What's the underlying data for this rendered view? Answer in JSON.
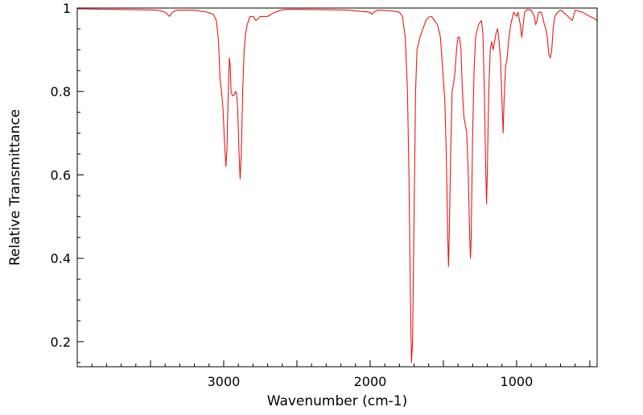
{
  "chart_data": {
    "type": "line",
    "title": "",
    "xlabel": "Wavenumber (cm-1)",
    "ylabel": "Relative Transmittance",
    "xlim": [
      4000,
      450
    ],
    "ylim": [
      0.14,
      1.0
    ],
    "x_reversed": true,
    "grid": false,
    "legend": "none",
    "x_ticks": [
      {
        "value": 3000,
        "label": "3000"
      },
      {
        "value": 2000,
        "label": "2000"
      },
      {
        "value": 1000,
        "label": "1000"
      }
    ],
    "y_ticks": [
      {
        "value": 0.2,
        "label": "0.2"
      },
      {
        "value": 0.4,
        "label": "0.4"
      },
      {
        "value": 0.6,
        "label": "0.6"
      },
      {
        "value": 0.8,
        "label": "0.8"
      },
      {
        "value": 1.0,
        "label": "1"
      }
    ],
    "series": [
      {
        "color": "#e8191a",
        "points": [
          [
            4000,
            0.998
          ],
          [
            3800,
            0.997
          ],
          [
            3600,
            0.996
          ],
          [
            3450,
            0.995
          ],
          [
            3400,
            0.99
          ],
          [
            3370,
            0.98
          ],
          [
            3350,
            0.99
          ],
          [
            3320,
            0.995
          ],
          [
            3200,
            0.995
          ],
          [
            3110,
            0.99
          ],
          [
            3070,
            0.985
          ],
          [
            3050,
            0.97
          ],
          [
            3035,
            0.92
          ],
          [
            3025,
            0.83
          ],
          [
            3015,
            0.8
          ],
          [
            3005,
            0.76
          ],
          [
            2995,
            0.68
          ],
          [
            2985,
            0.62
          ],
          [
            2978,
            0.66
          ],
          [
            2970,
            0.78
          ],
          [
            2962,
            0.88
          ],
          [
            2955,
            0.86
          ],
          [
            2950,
            0.8
          ],
          [
            2940,
            0.79
          ],
          [
            2930,
            0.79
          ],
          [
            2920,
            0.8
          ],
          [
            2912,
            0.795
          ],
          [
            2905,
            0.76
          ],
          [
            2895,
            0.65
          ],
          [
            2888,
            0.59
          ],
          [
            2880,
            0.65
          ],
          [
            2870,
            0.8
          ],
          [
            2860,
            0.9
          ],
          [
            2850,
            0.94
          ],
          [
            2840,
            0.96
          ],
          [
            2820,
            0.98
          ],
          [
            2800,
            0.98
          ],
          [
            2780,
            0.97
          ],
          [
            2750,
            0.98
          ],
          [
            2700,
            0.98
          ],
          [
            2650,
            0.99
          ],
          [
            2600,
            0.996
          ],
          [
            2500,
            0.997
          ],
          [
            2300,
            0.996
          ],
          [
            2150,
            0.995
          ],
          [
            2000,
            0.99
          ],
          [
            1990,
            0.985
          ],
          [
            1975,
            0.99
          ],
          [
            1950,
            0.995
          ],
          [
            1850,
            0.993
          ],
          [
            1800,
            0.99
          ],
          [
            1780,
            0.98
          ],
          [
            1760,
            0.93
          ],
          [
            1745,
            0.8
          ],
          [
            1735,
            0.6
          ],
          [
            1725,
            0.3
          ],
          [
            1718,
            0.15
          ],
          [
            1710,
            0.2
          ],
          [
            1700,
            0.5
          ],
          [
            1690,
            0.8
          ],
          [
            1680,
            0.9
          ],
          [
            1660,
            0.93
          ],
          [
            1640,
            0.95
          ],
          [
            1620,
            0.97
          ],
          [
            1600,
            0.978
          ],
          [
            1580,
            0.98
          ],
          [
            1560,
            0.97
          ],
          [
            1540,
            0.96
          ],
          [
            1520,
            0.93
          ],
          [
            1510,
            0.88
          ],
          [
            1500,
            0.83
          ],
          [
            1490,
            0.78
          ],
          [
            1480,
            0.65
          ],
          [
            1470,
            0.45
          ],
          [
            1465,
            0.38
          ],
          [
            1460,
            0.45
          ],
          [
            1450,
            0.65
          ],
          [
            1440,
            0.8
          ],
          [
            1430,
            0.82
          ],
          [
            1420,
            0.85
          ],
          [
            1410,
            0.9
          ],
          [
            1400,
            0.93
          ],
          [
            1390,
            0.93
          ],
          [
            1380,
            0.9
          ],
          [
            1370,
            0.8
          ],
          [
            1360,
            0.74
          ],
          [
            1350,
            0.72
          ],
          [
            1340,
            0.7
          ],
          [
            1330,
            0.6
          ],
          [
            1320,
            0.45
          ],
          [
            1315,
            0.4
          ],
          [
            1310,
            0.45
          ],
          [
            1300,
            0.7
          ],
          [
            1290,
            0.85
          ],
          [
            1280,
            0.93
          ],
          [
            1260,
            0.96
          ],
          [
            1240,
            0.97
          ],
          [
            1230,
            0.94
          ],
          [
            1220,
            0.8
          ],
          [
            1210,
            0.6
          ],
          [
            1205,
            0.53
          ],
          [
            1200,
            0.6
          ],
          [
            1190,
            0.8
          ],
          [
            1180,
            0.9
          ],
          [
            1170,
            0.92
          ],
          [
            1160,
            0.9
          ],
          [
            1150,
            0.92
          ],
          [
            1140,
            0.94
          ],
          [
            1130,
            0.95
          ],
          [
            1120,
            0.92
          ],
          [
            1110,
            0.88
          ],
          [
            1100,
            0.78
          ],
          [
            1092,
            0.7
          ],
          [
            1085,
            0.78
          ],
          [
            1075,
            0.86
          ],
          [
            1065,
            0.88
          ],
          [
            1055,
            0.92
          ],
          [
            1040,
            0.96
          ],
          [
            1020,
            0.99
          ],
          [
            1000,
            0.98
          ],
          [
            990,
            0.99
          ],
          [
            975,
            0.96
          ],
          [
            965,
            0.93
          ],
          [
            955,
            0.96
          ],
          [
            945,
            0.99
          ],
          [
            930,
            0.996
          ],
          [
            900,
            0.995
          ],
          [
            880,
            0.98
          ],
          [
            870,
            0.96
          ],
          [
            860,
            0.97
          ],
          [
            850,
            0.99
          ],
          [
            830,
            0.99
          ],
          [
            810,
            0.96
          ],
          [
            800,
            0.95
          ],
          [
            790,
            0.93
          ],
          [
            780,
            0.89
          ],
          [
            770,
            0.88
          ],
          [
            760,
            0.9
          ],
          [
            750,
            0.95
          ],
          [
            740,
            0.98
          ],
          [
            720,
            0.99
          ],
          [
            700,
            0.995
          ],
          [
            680,
            0.99
          ],
          [
            650,
            0.98
          ],
          [
            620,
            0.97
          ],
          [
            600,
            0.995
          ],
          [
            550,
            0.99
          ],
          [
            500,
            0.98
          ],
          [
            470,
            0.975
          ],
          [
            450,
            0.97
          ]
        ]
      }
    ]
  }
}
